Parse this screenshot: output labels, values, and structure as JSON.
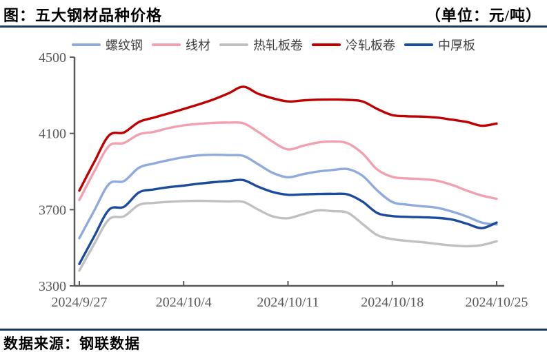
{
  "header": {
    "title": "图：五大钢材品种价格",
    "unit": "（单位：元/吨）"
  },
  "source": {
    "label": "数据来源：钢联数据"
  },
  "colors": {
    "rule": "#17375E",
    "axis": "#595959",
    "tick_label": "#595959",
    "legend_text": "#404040"
  },
  "chart_data": {
    "type": "line",
    "title": "五大钢材品种价格",
    "unit": "元/吨",
    "grid": false,
    "legend_position": "top",
    "ylim": [
      3300,
      4500
    ],
    "y_ticks": [
      3300,
      3700,
      4100,
      4500
    ],
    "x_tick_labels": [
      "2024/9/27",
      "2024/10/4",
      "2024/10/11",
      "2024/10/18",
      "2024/10/25"
    ],
    "x": [
      "2024/9/27",
      "2024/9/28",
      "2024/9/29",
      "2024/9/30",
      "2024/10/1",
      "2024/10/2",
      "2024/10/3",
      "2024/10/4",
      "2024/10/5",
      "2024/10/6",
      "2024/10/7",
      "2024/10/8",
      "2024/10/9",
      "2024/10/10",
      "2024/10/11",
      "2024/10/12",
      "2024/10/13",
      "2024/10/14",
      "2024/10/15",
      "2024/10/16",
      "2024/10/17",
      "2024/10/18",
      "2024/10/19",
      "2024/10/20",
      "2024/10/21",
      "2024/10/22",
      "2024/10/23",
      "2024/10/24",
      "2024/10/25"
    ],
    "series": [
      {
        "name": "螺纹钢",
        "key": "rebar",
        "color": "#8FAADC",
        "values": [
          3550,
          3695,
          3835,
          3850,
          3920,
          3942,
          3960,
          3975,
          3985,
          3988,
          3986,
          3982,
          3938,
          3892,
          3870,
          3886,
          3900,
          3908,
          3913,
          3878,
          3800,
          3740,
          3726,
          3718,
          3710,
          3690,
          3664,
          3632,
          3622
        ]
      },
      {
        "name": "线材",
        "key": "wire-rod",
        "color": "#F2A0B0",
        "values": [
          3750,
          3900,
          4035,
          4050,
          4095,
          4108,
          4128,
          4142,
          4150,
          4155,
          4157,
          4153,
          4108,
          4055,
          4016,
          4035,
          4052,
          4058,
          4048,
          3995,
          3910,
          3872,
          3864,
          3860,
          3852,
          3830,
          3800,
          3774,
          3757
        ]
      },
      {
        "name": "热轧板卷",
        "key": "hot-rolled-coil",
        "color": "#C0C0C0",
        "values": [
          3380,
          3520,
          3650,
          3665,
          3725,
          3735,
          3741,
          3745,
          3746,
          3745,
          3743,
          3741,
          3700,
          3664,
          3655,
          3676,
          3696,
          3692,
          3684,
          3625,
          3566,
          3545,
          3536,
          3529,
          3520,
          3512,
          3508,
          3514,
          3534
        ]
      },
      {
        "name": "冷轧板卷",
        "key": "cold-rolled-coil",
        "color": "#C00000",
        "values": [
          3800,
          3950,
          4090,
          4105,
          4160,
          4183,
          4205,
          4228,
          4252,
          4278,
          4310,
          4345,
          4308,
          4284,
          4268,
          4273,
          4277,
          4278,
          4276,
          4268,
          4228,
          4196,
          4190,
          4188,
          4183,
          4172,
          4160,
          4140,
          4152
        ]
      },
      {
        "name": "中厚板",
        "key": "medium-plate",
        "color": "#1B4B9C",
        "values": [
          3415,
          3560,
          3700,
          3715,
          3790,
          3806,
          3818,
          3826,
          3836,
          3844,
          3850,
          3855,
          3820,
          3792,
          3778,
          3780,
          3782,
          3783,
          3780,
          3742,
          3682,
          3666,
          3662,
          3660,
          3657,
          3648,
          3626,
          3603,
          3632
        ]
      }
    ]
  }
}
